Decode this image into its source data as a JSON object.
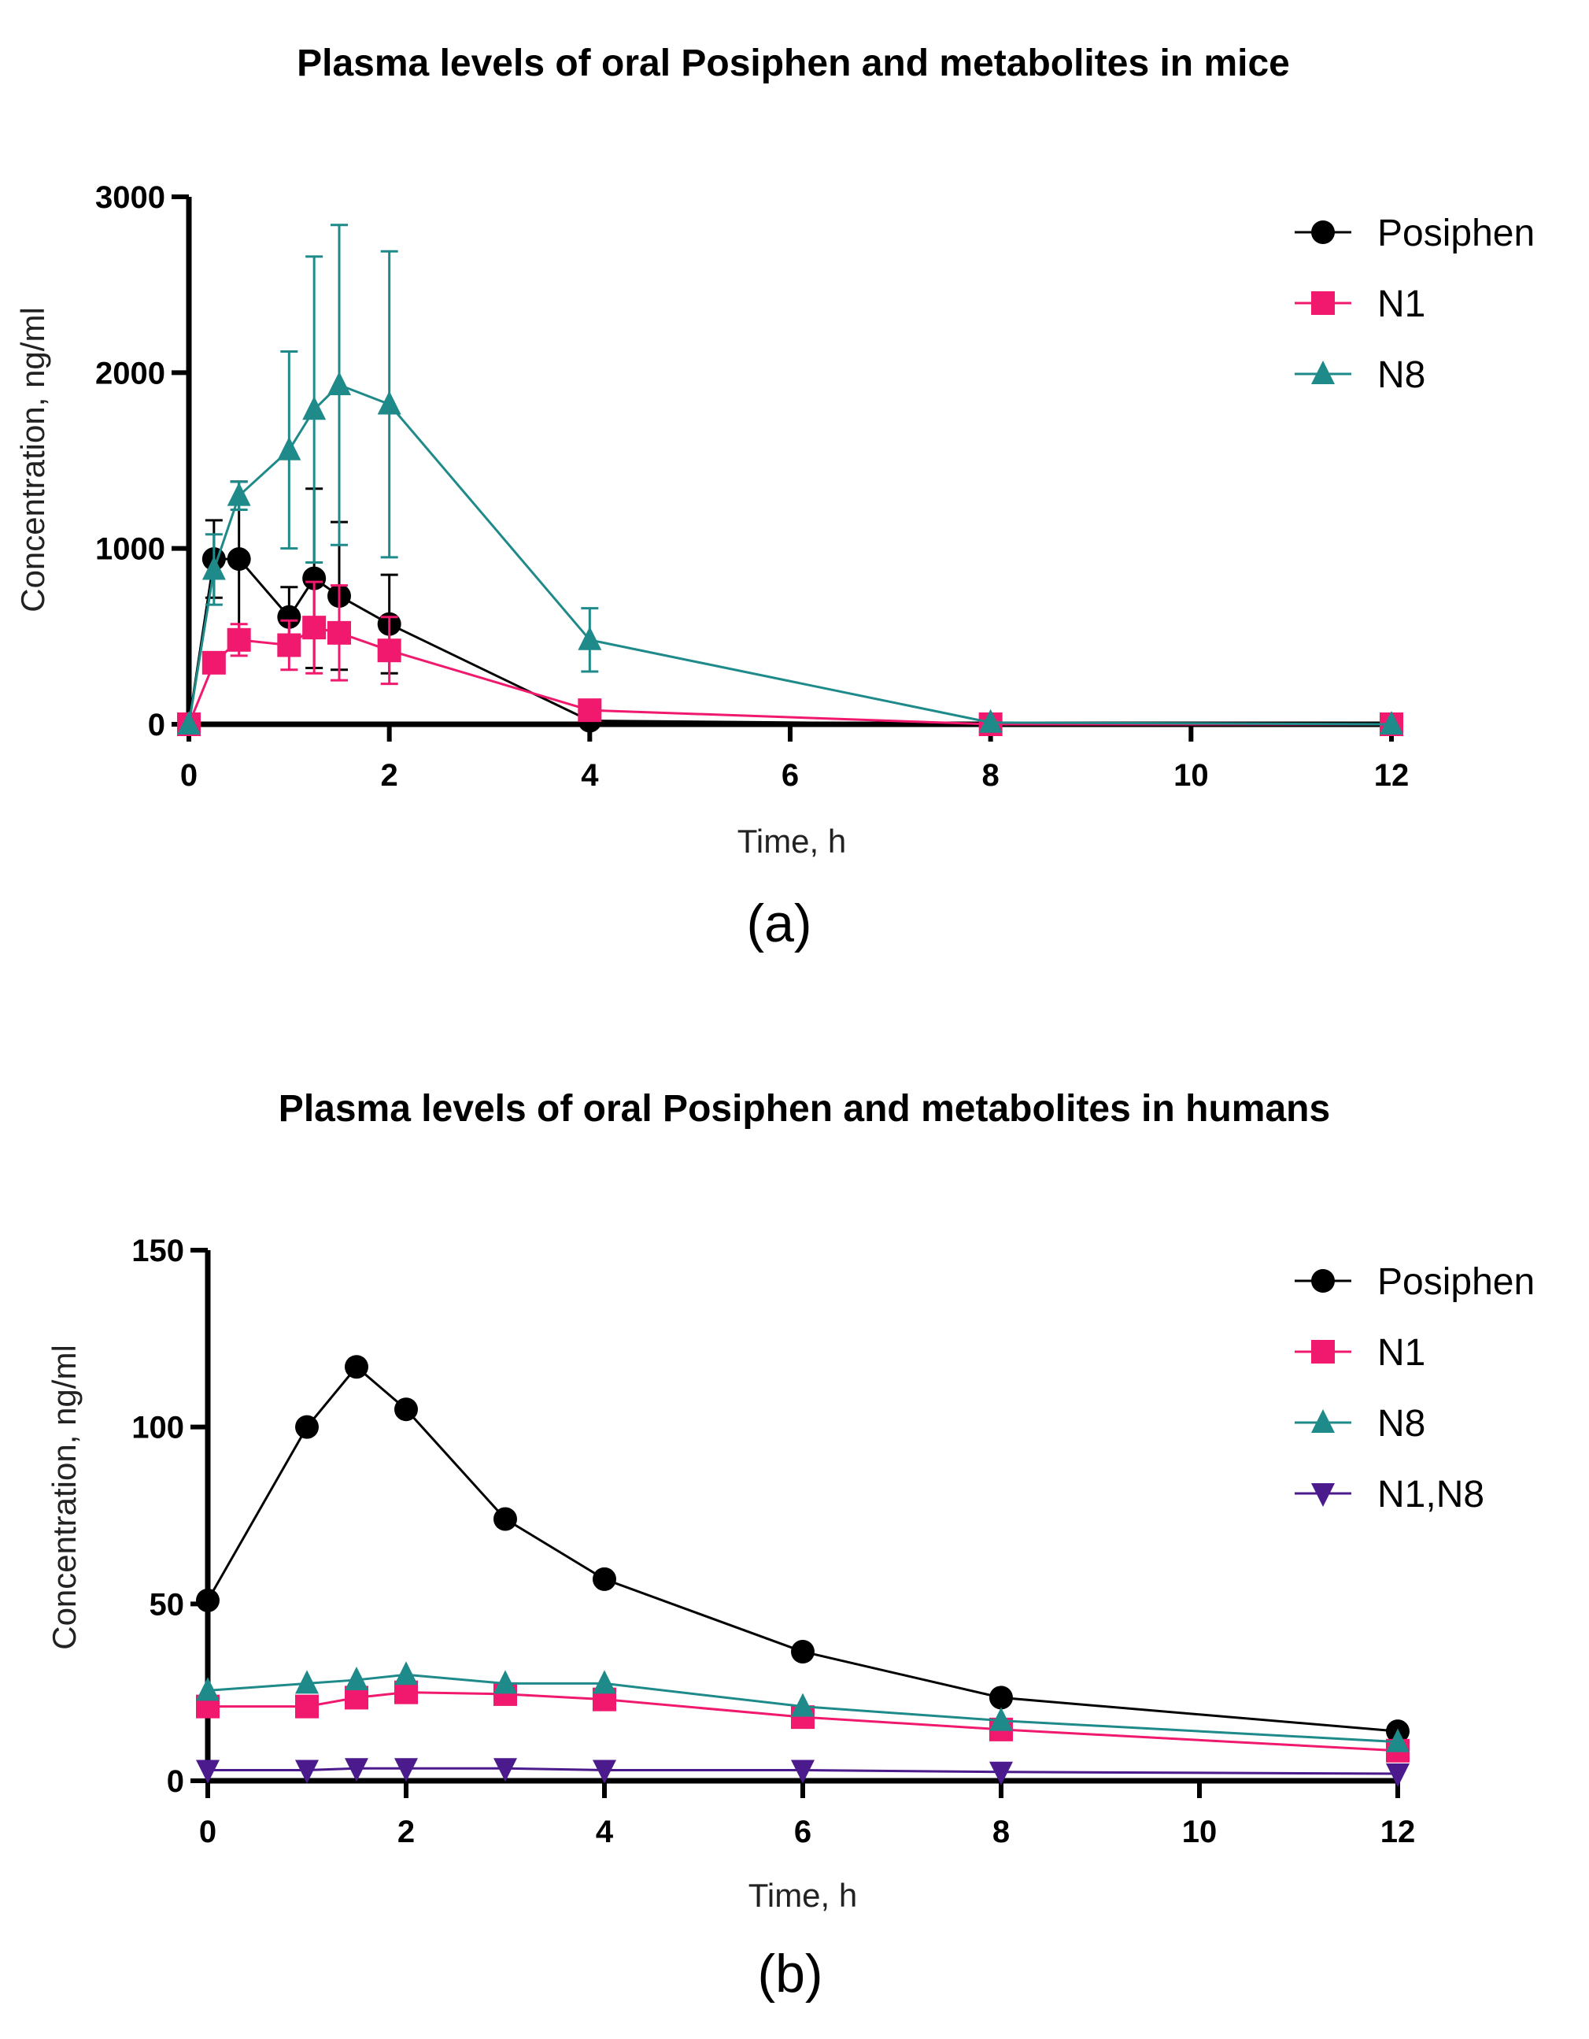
{
  "chart_data": [
    {
      "type": "line",
      "title": "Plasma levels of oral Posiphen and metabolites in mice",
      "xlabel": "Time, h",
      "ylabel": "Concentration, ng/ml",
      "panel_label": "(a)",
      "xlim": [
        0,
        12
      ],
      "ylim": [
        0,
        3000
      ],
      "xticks": [
        0,
        2,
        4,
        6,
        8,
        10,
        12
      ],
      "yticks": [
        0,
        1000,
        2000,
        3000
      ],
      "legend_position": "top-right",
      "series": [
        {
          "name": "Posiphen",
          "marker": "circle",
          "color": "#000000",
          "x": [
            0,
            0.25,
            0.5,
            1,
            1.25,
            1.5,
            2,
            4,
            8,
            12
          ],
          "y": [
            0,
            940,
            940,
            610,
            830,
            730,
            570,
            20,
            0,
            0
          ],
          "err": [
            0,
            220,
            440,
            170,
            510,
            420,
            280,
            0,
            0,
            0
          ]
        },
        {
          "name": "N1",
          "marker": "square",
          "color": "#f0196e",
          "x": [
            0,
            0.25,
            0.5,
            1,
            1.25,
            1.5,
            2,
            4,
            8,
            12
          ],
          "y": [
            0,
            350,
            480,
            450,
            550,
            520,
            420,
            80,
            0,
            0
          ],
          "err": [
            0,
            0,
            90,
            140,
            260,
            270,
            190,
            0,
            0,
            0
          ]
        },
        {
          "name": "N8",
          "marker": "triangle-up",
          "color": "#1f8a8a",
          "x": [
            0,
            0.25,
            0.5,
            1,
            1.25,
            1.5,
            2,
            4,
            8,
            12
          ],
          "y": [
            0,
            880,
            1300,
            1560,
            1790,
            1930,
            1820,
            480,
            10,
            0
          ],
          "err": [
            0,
            200,
            80,
            560,
            870,
            910,
            870,
            180,
            0,
            0
          ]
        }
      ]
    },
    {
      "type": "line",
      "title": "Plasma levels of oral Posiphen and metabolites in humans",
      "xlabel": "Time, h",
      "ylabel": "Concentration, ng/ml",
      "panel_label": "(b)",
      "xlim": [
        0,
        12
      ],
      "ylim": [
        0,
        150
      ],
      "xticks": [
        0,
        2,
        4,
        6,
        8,
        10,
        12
      ],
      "yticks": [
        0,
        50,
        100,
        150
      ],
      "legend_position": "top-right",
      "series": [
        {
          "name": "Posiphen",
          "marker": "circle",
          "color": "#000000",
          "x": [
            0,
            1,
            1.5,
            2,
            3,
            4,
            6,
            8,
            12
          ],
          "y": [
            51,
            100,
            117,
            105,
            74,
            57,
            36.5,
            23.5,
            14
          ]
        },
        {
          "name": "N1",
          "marker": "square",
          "color": "#f0196e",
          "x": [
            0,
            1,
            1.5,
            2,
            3,
            4,
            6,
            8,
            12
          ],
          "y": [
            21,
            21,
            23.5,
            25,
            24.5,
            23,
            18,
            14.5,
            8.5
          ]
        },
        {
          "name": "N8",
          "marker": "triangle-up",
          "color": "#1f8a8a",
          "x": [
            0,
            1,
            1.5,
            2,
            3,
            4,
            6,
            8,
            12
          ],
          "y": [
            25.5,
            27.5,
            28.5,
            30,
            27.5,
            27.5,
            21,
            17,
            11
          ]
        },
        {
          "name": "N1,N8",
          "marker": "triangle-down",
          "color": "#4b1a8c",
          "x": [
            0,
            1,
            1.5,
            2,
            3,
            4,
            6,
            8,
            12
          ],
          "y": [
            3,
            3,
            3.5,
            3.5,
            3.5,
            3,
            3,
            2.5,
            2
          ]
        }
      ]
    }
  ]
}
